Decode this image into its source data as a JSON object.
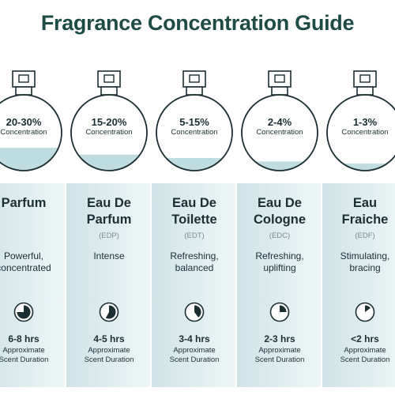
{
  "title": "Fragrance Concentration Guide",
  "colors": {
    "title": "#1d4c46",
    "text": "#1b2f33",
    "muted": "#7a8a8d",
    "band_dark": "#cfe3e6",
    "band_light": "#eef6f7",
    "liquid": "#bfdde1",
    "outline": "#1b2f33"
  },
  "fragrances": [
    {
      "concentration": "20-30%",
      "concentration_label": "Concentration",
      "name_line1": "Parfum",
      "name_line2": "",
      "abbr": "",
      "description": "Powerful,\nconcentrated",
      "duration": "6-8 hrs",
      "duration_label": "Approximate\nScent Duration",
      "fill_level": 0.3,
      "timer_fraction": 0.75,
      "timer_icon": "pie-timer-icon"
    },
    {
      "concentration": "15-20%",
      "concentration_label": "Concentration",
      "name_line1": "Eau De",
      "name_line2": "Parfum",
      "abbr": "(EDP)",
      "description": "Intense",
      "duration": "4-5 hrs",
      "duration_label": "Approximate\nScent Duration",
      "fill_level": 0.2,
      "timer_fraction": 0.58,
      "timer_icon": "pie-timer-icon"
    },
    {
      "concentration": "5-15%",
      "concentration_label": "Concentration",
      "name_line1": "Eau De",
      "name_line2": "Toilette",
      "abbr": "(EDT)",
      "description": "Refreshing,\nbalanced",
      "duration": "3-4 hrs",
      "duration_label": "Approximate\nScent Duration",
      "fill_level": 0.15,
      "timer_fraction": 0.4,
      "timer_icon": "pie-timer-icon"
    },
    {
      "concentration": "2-4%",
      "concentration_label": "Concentration",
      "name_line1": "Eau De",
      "name_line2": "Cologne",
      "abbr": "(EDC)",
      "description": "Refreshing,\nuplifting",
      "duration": "2-3 hrs",
      "duration_label": "Approximate\nScent Duration",
      "fill_level": 0.1,
      "timer_fraction": 0.25,
      "timer_icon": "pie-timer-icon"
    },
    {
      "concentration": "1-3%",
      "concentration_label": "Concentration",
      "name_line1": "Eau",
      "name_line2": "Fraiche",
      "abbr": "(EDF)",
      "description": "Stimulating,\nbracing",
      "duration": "<2 hrs",
      "duration_label": "Approximate\nScent Duration",
      "fill_level": 0.07,
      "timer_fraction": 0.15,
      "timer_icon": "pie-timer-icon"
    }
  ]
}
